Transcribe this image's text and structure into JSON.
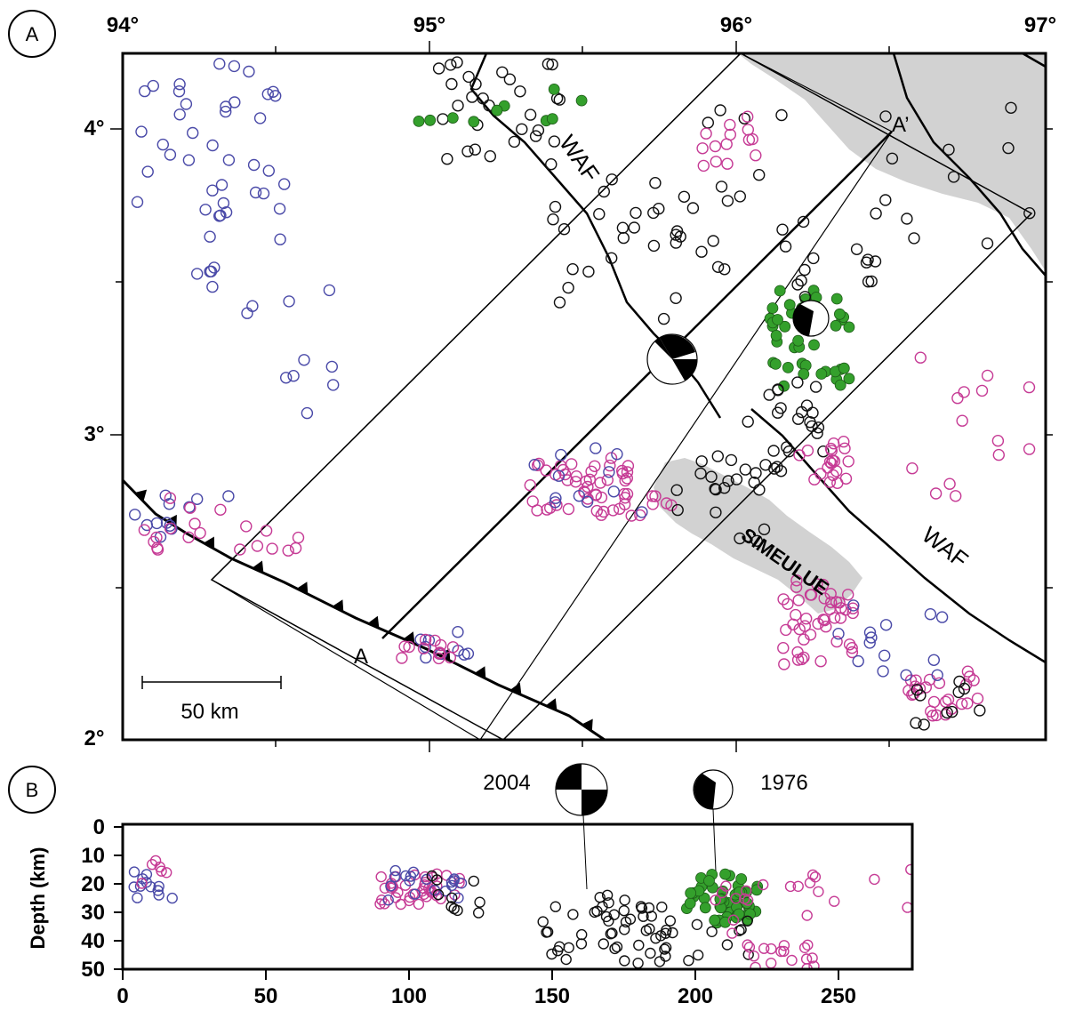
{
  "figure": {
    "panel_a": {
      "label": "A",
      "lon_ticks": [
        "94°",
        "95°",
        "96°",
        "97°"
      ],
      "lat_ticks": [
        "4°",
        "3°",
        "2°"
      ],
      "labels": {
        "fault_north": "WAF",
        "fault_south": "WAF",
        "island": "SIMEULUE",
        "profile_start": "A",
        "profile_end": "A’",
        "scale_bar": "50 km"
      }
    },
    "panel_b": {
      "label": "B",
      "ylabel": "Depth (km)",
      "x_ticks": [
        "0",
        "50",
        "100",
        "150",
        "200",
        "250"
      ],
      "y_ticks": [
        "0",
        "10",
        "20",
        "30",
        "40",
        "50"
      ],
      "event_labels": [
        "2004",
        "1976"
      ]
    },
    "colors": {
      "black_events": "#111111",
      "blue_events": "#4a4aa8",
      "magenta_events": "#c63b95",
      "green_events": "#34a02c",
      "land": "#d2d2d2"
    }
  }
}
